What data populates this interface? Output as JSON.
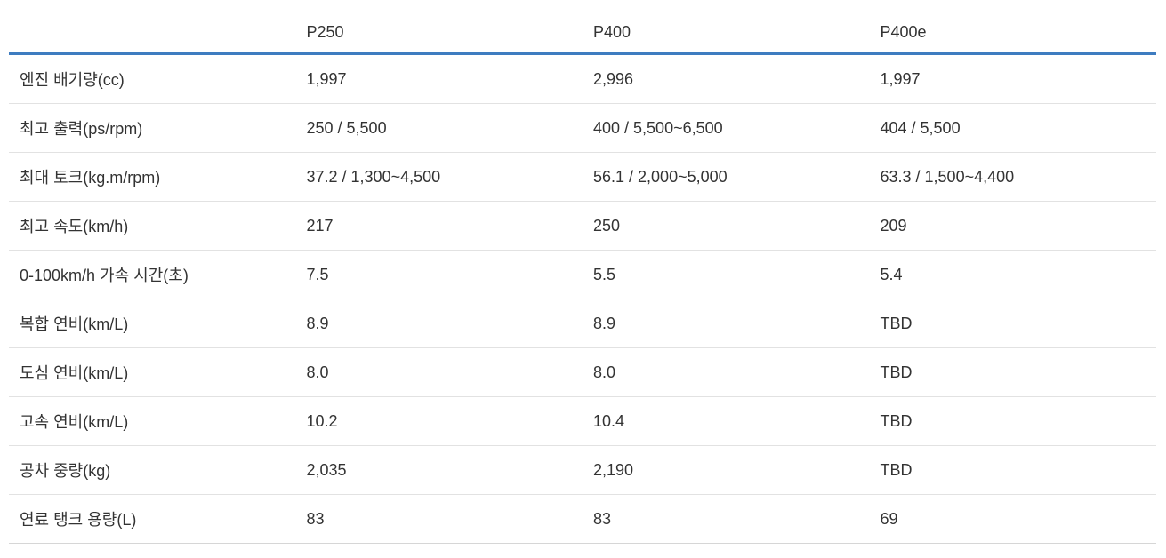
{
  "chart_data": {
    "type": "table",
    "title": "",
    "columns": [
      "",
      "P250",
      "P400",
      "P400e"
    ],
    "rows": [
      {
        "label": "엔진 배기량(cc)",
        "values": [
          "1,997",
          "2,996",
          "1,997"
        ]
      },
      {
        "label": "최고 출력(ps/rpm)",
        "values": [
          "250 / 5,500",
          "400 / 5,500~6,500",
          "404 / 5,500"
        ]
      },
      {
        "label": "최대 토크(kg.m/rpm)",
        "values": [
          "37.2 / 1,300~4,500",
          "56.1 / 2,000~5,000",
          "63.3 / 1,500~4,400"
        ]
      },
      {
        "label": "최고 속도(km/h)",
        "values": [
          "217",
          "250",
          "209"
        ]
      },
      {
        "label": "0-100km/h 가속 시간(초)",
        "values": [
          "7.5",
          "5.5",
          "5.4"
        ]
      },
      {
        "label": "복합 연비(km/L)",
        "values": [
          "8.9",
          "8.9",
          "TBD"
        ]
      },
      {
        "label": "도심 연비(km/L)",
        "values": [
          "8.0",
          "8.0",
          "TBD"
        ]
      },
      {
        "label": "고속 연비(km/L)",
        "values": [
          "10.2",
          "10.4",
          "TBD"
        ]
      },
      {
        "label": "공차 중량(kg)",
        "values": [
          "2,035",
          "2,190",
          "TBD"
        ]
      },
      {
        "label": "연료 탱크 용량(L)",
        "values": [
          "83",
          "83",
          "69"
        ]
      }
    ],
    "layout": {
      "grid": "horizontal-row-dividers-only",
      "header_rule_color": "#3e7cc0",
      "row_divider_color": "#e2e2e2",
      "text_color": "#333333",
      "background": "#ffffff"
    }
  }
}
